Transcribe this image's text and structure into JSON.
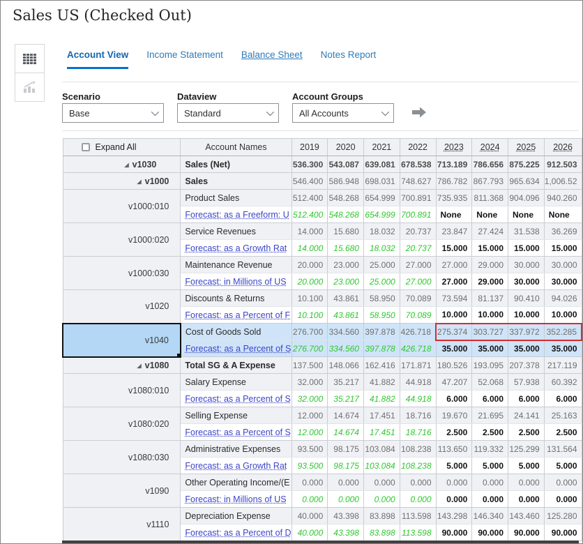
{
  "window": {
    "title": "Sales US (Checked Out)"
  },
  "colors": {
    "tab_active": "#1466b2",
    "tab_link": "#2e7bb8",
    "tab_underline": "#0572ce",
    "link_indigo": "#3c45c6",
    "forecast_green": "#2fc72f",
    "red_box": "#d92b2b",
    "selection_row": "#cfe4f8",
    "selection_cell": "#b3d7f5"
  },
  "rail": {
    "grid_view_icon": "grid-view-icon",
    "chart_view_icon": "chart-view-icon"
  },
  "tabs": [
    {
      "label": "Account View",
      "active": true
    },
    {
      "label": "Income Statement",
      "active": false
    },
    {
      "label": "Balance Sheet",
      "active": false,
      "underlined": true
    },
    {
      "label": "Notes Report",
      "active": false
    }
  ],
  "filters": [
    {
      "label": "Scenario",
      "value": "Base"
    },
    {
      "label": "Dataview",
      "value": "Standard"
    },
    {
      "label": "Account Groups",
      "value": "All Accounts"
    }
  ],
  "go_icon": "go-arrow-icon",
  "grid": {
    "expand_all_label": "Expand All",
    "account_names_header": "Account Names",
    "years": [
      "2019",
      "2020",
      "2021",
      "2022",
      "2023",
      "2024",
      "2025",
      "2026"
    ],
    "year_is_link": [
      false,
      false,
      false,
      false,
      true,
      true,
      true,
      true
    ],
    "rows": [
      {
        "kind": "parent",
        "code": "v1030",
        "level": 1,
        "expandable": true,
        "name": "Sales (Net)",
        "values": [
          "536.300",
          "543.087",
          "639.081",
          "678.538",
          "713.189",
          "786.656",
          "875.225",
          "912.503"
        ],
        "valuesBold": true
      },
      {
        "kind": "parent",
        "code": "v1000",
        "level": 2,
        "expandable": true,
        "name": "Sales",
        "values": [
          "546.400",
          "586.948",
          "698.031",
          "748.627",
          "786.782",
          "867.793",
          "965.634",
          "1,006.52"
        ]
      },
      {
        "kind": "pair",
        "code": "v1000:010",
        "name": "Product Sales",
        "values": [
          "512.400",
          "548.268",
          "654.999",
          "700.891",
          "735.935",
          "811.368",
          "904.096",
          "940.260"
        ],
        "link": "Forecast: as a Freeform: U",
        "fvalues": [
          "512.400",
          "548.268",
          "654.999",
          "700.891",
          "None",
          "None",
          "None",
          "None"
        ]
      },
      {
        "kind": "pair",
        "code": "v1000:020",
        "name": "Service Revenues",
        "values": [
          "14.000",
          "15.680",
          "18.032",
          "20.737",
          "23.847",
          "27.424",
          "31.538",
          "36.269"
        ],
        "link": "Forecast: as a Growth Rat",
        "fvalues": [
          "14.000",
          "15.680",
          "18.032",
          "20.737",
          "15.000",
          "15.000",
          "15.000",
          "15.000"
        ]
      },
      {
        "kind": "pair",
        "code": "v1000:030",
        "name": "Maintenance Revenue",
        "values": [
          "20.000",
          "23.000",
          "25.000",
          "27.000",
          "27.000",
          "29.000",
          "30.000",
          "30.000"
        ],
        "link": "Forecast: in Millions of US",
        "fvalues": [
          "20.000",
          "23.000",
          "25.000",
          "27.000",
          "27.000",
          "29.000",
          "30.000",
          "30.000"
        ]
      },
      {
        "kind": "pair",
        "code": "v1020",
        "name": "Discounts & Returns",
        "values": [
          "10.100",
          "43.861",
          "58.950",
          "70.089",
          "73.594",
          "81.137",
          "90.410",
          "94.026"
        ],
        "link": "Forecast: as a Percent of F",
        "fvalues": [
          "10.100",
          "43.861",
          "58.950",
          "70.089",
          "10.000",
          "10.000",
          "10.000",
          "10.000"
        ]
      },
      {
        "kind": "pair",
        "code": "v1040",
        "name": "Cost of Goods Sold",
        "selected": true,
        "redbox": true,
        "values": [
          "276.700",
          "334.560",
          "397.878",
          "426.718",
          "275.374",
          "303.727",
          "337.972",
          "352.285"
        ],
        "link": "Forecast: as a Percent of S",
        "fvalues": [
          "276.700",
          "334.560",
          "397.878",
          "426.718",
          "35.000",
          "35.000",
          "35.000",
          "35.000"
        ]
      },
      {
        "kind": "parent",
        "code": "v1080",
        "level": 2,
        "expandable": true,
        "name": "Total SG & A Expense",
        "values": [
          "137.500",
          "148.066",
          "162.416",
          "171.871",
          "180.526",
          "193.095",
          "207.378",
          "217.119"
        ]
      },
      {
        "kind": "pair",
        "code": "v1080:010",
        "name": "Salary Expense",
        "values": [
          "32.000",
          "35.217",
          "41.882",
          "44.918",
          "47.207",
          "52.068",
          "57.938",
          "60.392"
        ],
        "link": "Forecast: as a Percent of S",
        "fvalues": [
          "32.000",
          "35.217",
          "41.882",
          "44.918",
          "6.000",
          "6.000",
          "6.000",
          "6.000"
        ]
      },
      {
        "kind": "pair",
        "code": "v1080:020",
        "name": "Selling Expense",
        "values": [
          "12.000",
          "14.674",
          "17.451",
          "18.716",
          "19.670",
          "21.695",
          "24.141",
          "25.163"
        ],
        "link": "Forecast: as a Percent of S",
        "fvalues": [
          "12.000",
          "14.674",
          "17.451",
          "18.716",
          "2.500",
          "2.500",
          "2.500",
          "2.500"
        ]
      },
      {
        "kind": "pair",
        "code": "v1080:030",
        "name": "Administrative Expenses",
        "values": [
          "93.500",
          "98.175",
          "103.084",
          "108.238",
          "113.650",
          "119.332",
          "125.299",
          "131.564"
        ],
        "link": "Forecast: as a Growth Rat",
        "fvalues": [
          "93.500",
          "98.175",
          "103.084",
          "108.238",
          "5.000",
          "5.000",
          "5.000",
          "5.000"
        ]
      },
      {
        "kind": "pair",
        "code": "v1090",
        "name": "Other Operating Income/(E",
        "values": [
          "0.000",
          "0.000",
          "0.000",
          "0.000",
          "0.000",
          "0.000",
          "0.000",
          "0.000"
        ],
        "link": "Forecast: in Millions of US",
        "fvalues": [
          "0.000",
          "0.000",
          "0.000",
          "0.000",
          "0.000",
          "0.000",
          "0.000",
          "0.000"
        ]
      },
      {
        "kind": "pair",
        "code": "v1110",
        "name": "Depreciation Expense",
        "values": [
          "40.000",
          "43.398",
          "83.898",
          "113.598",
          "143.298",
          "146.340",
          "143.460",
          "125.280"
        ],
        "link": "Forecast: as a Percent of D",
        "fvalues": [
          "40.000",
          "43.398",
          "83.898",
          "113.598",
          "90.000",
          "90.000",
          "90.000",
          "90.000"
        ]
      }
    ]
  }
}
